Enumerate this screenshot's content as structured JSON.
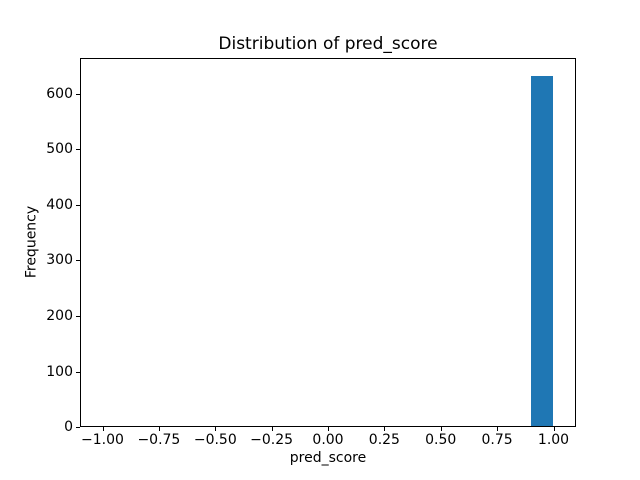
{
  "chart_data": {
    "type": "bar",
    "subtype": "histogram",
    "title": "Distribution of pred_score",
    "xlabel": "pred_score",
    "ylabel": "Frequency",
    "xlim": [
      -1.1,
      1.1
    ],
    "ylim": [
      0,
      664.65
    ],
    "xticks": [
      {
        "value": -1.0,
        "label": "−1.00"
      },
      {
        "value": -0.75,
        "label": "−0.75"
      },
      {
        "value": -0.5,
        "label": "−0.50"
      },
      {
        "value": -0.25,
        "label": "−0.25"
      },
      {
        "value": 0.0,
        "label": "0.00"
      },
      {
        "value": 0.25,
        "label": "0.25"
      },
      {
        "value": 0.5,
        "label": "0.50"
      },
      {
        "value": 0.75,
        "label": "0.75"
      },
      {
        "value": 1.0,
        "label": "1.00"
      }
    ],
    "yticks": [
      {
        "value": 0,
        "label": "0"
      },
      {
        "value": 100,
        "label": "100"
      },
      {
        "value": 200,
        "label": "200"
      },
      {
        "value": 300,
        "label": "300"
      },
      {
        "value": 400,
        "label": "400"
      },
      {
        "value": 500,
        "label": "500"
      },
      {
        "value": 600,
        "label": "600"
      }
    ],
    "bars": [
      {
        "bin_start": 0.9,
        "bin_end": 1.0,
        "frequency": 633
      }
    ],
    "bin_range": [
      -1.0,
      1.0
    ],
    "bin_width": 0.1,
    "bar_color": "#1f77b4",
    "grid": false
  },
  "colors": {
    "background": "#ffffff",
    "axis": "#000000",
    "text": "#000000"
  }
}
